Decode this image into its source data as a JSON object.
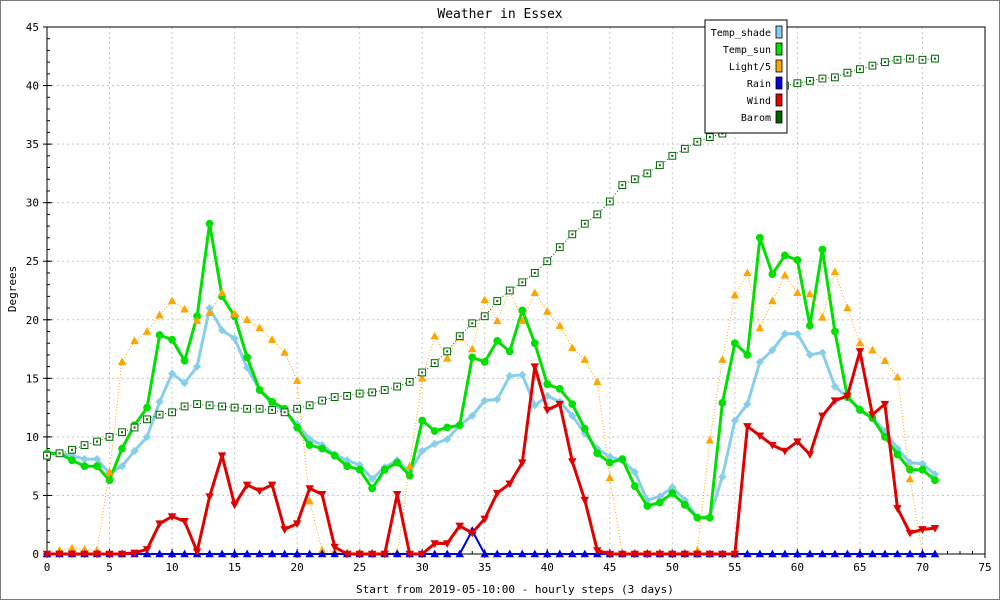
{
  "chart_data": {
    "type": "line",
    "title": "Weather in Essex",
    "xlabel": "Start from 2019-05-10:00 - hourly steps (3 days)",
    "ylabel": "Degrees",
    "xlim": [
      0,
      75
    ],
    "ylim": [
      0,
      45
    ],
    "xticks": [
      0,
      5,
      10,
      15,
      20,
      25,
      30,
      35,
      40,
      45,
      50,
      55,
      60,
      65,
      70,
      75
    ],
    "yticks": [
      0,
      5,
      10,
      15,
      20,
      25,
      30,
      35,
      40,
      45
    ],
    "grid": true,
    "legend_position": "top-right",
    "x": [
      0,
      1,
      2,
      3,
      4,
      5,
      6,
      7,
      8,
      9,
      10,
      11,
      12,
      13,
      14,
      15,
      16,
      17,
      18,
      19,
      20,
      21,
      22,
      23,
      24,
      25,
      26,
      27,
      28,
      29,
      30,
      31,
      32,
      33,
      34,
      35,
      36,
      37,
      38,
      39,
      40,
      41,
      42,
      43,
      44,
      45,
      46,
      47,
      48,
      49,
      50,
      51,
      52,
      53,
      54,
      55,
      56,
      57,
      58,
      59,
      60,
      61,
      62,
      63,
      64,
      65,
      66,
      67,
      68,
      69,
      70,
      71
    ],
    "series": [
      {
        "name": "Temp_shade",
        "color": "#87ceeb",
        "marker": "diamond",
        "values": [
          8.6,
          8.6,
          8.4,
          8.1,
          8.1,
          6.9,
          7.5,
          8.8,
          10.0,
          13.0,
          15.4,
          14.6,
          16.0,
          21.0,
          19.1,
          18.4,
          15.9,
          14.0,
          12.8,
          12.2,
          11.1,
          9.8,
          9.3,
          8.5,
          8.0,
          7.6,
          6.4,
          7.4,
          8.0,
          7.0,
          8.8,
          9.4,
          9.8,
          11.0,
          11.8,
          13.1,
          13.2,
          15.2,
          15.3,
          12.7,
          13.5,
          13.0,
          11.8,
          10.3,
          9.0,
          8.3,
          8.0,
          7.0,
          4.6,
          4.9,
          5.7,
          4.6,
          3.1,
          3.2,
          6.6,
          11.4,
          12.8,
          16.4,
          17.4,
          18.8,
          18.8,
          17.0,
          17.2,
          14.3,
          13.4,
          12.4,
          11.6,
          10.5,
          9.0,
          7.8,
          7.7,
          6.8
        ]
      },
      {
        "name": "Temp_sun",
        "color": "#00e000",
        "marker": "circle",
        "values": [
          8.6,
          8.6,
          8.0,
          7.5,
          7.5,
          6.3,
          9.0,
          11.0,
          12.5,
          18.7,
          18.3,
          16.5,
          20.3,
          28.2,
          22.0,
          20.3,
          16.8,
          14.0,
          13.0,
          12.4,
          10.8,
          9.3,
          9.0,
          8.4,
          7.5,
          7.2,
          5.6,
          7.2,
          7.8,
          6.7,
          11.4,
          10.5,
          10.8,
          11.0,
          16.8,
          16.4,
          18.2,
          17.3,
          20.8,
          18.0,
          14.5,
          14.1,
          12.8,
          10.7,
          8.6,
          7.8,
          8.1,
          5.8,
          4.1,
          4.4,
          5.2,
          4.2,
          3.1,
          3.1,
          12.9,
          18.0,
          17.0,
          27.0,
          23.9,
          25.5,
          25.1,
          19.5,
          26.0,
          19.0,
          13.4,
          12.3,
          11.6,
          10.0,
          8.5,
          7.2,
          7.2,
          6.3
        ]
      },
      {
        "name": "Light/5",
        "color": "#ffa500",
        "marker": "triangle-up",
        "values": [
          0.0,
          0.3,
          0.5,
          0.4,
          0.3,
          7.0,
          16.4,
          18.2,
          19.0,
          20.4,
          21.6,
          20.9,
          19.9,
          20.6,
          22.3,
          20.5,
          20.0,
          19.3,
          18.3,
          17.2,
          14.8,
          4.5,
          0.3,
          0.2,
          0.1,
          0.1,
          0.1,
          0.1,
          0.1,
          7.5,
          15.0,
          18.6,
          16.7,
          18.5,
          17.5,
          21.7,
          19.9,
          22.5,
          19.9,
          22.3,
          20.7,
          19.5,
          17.6,
          16.6,
          14.7,
          6.5,
          0.1,
          0.1,
          0.1,
          0.1,
          0.1,
          0.1,
          0.3,
          9.7,
          16.6,
          22.1,
          24.0,
          19.3,
          21.6,
          23.8,
          22.3,
          22.2,
          20.2,
          24.1,
          21.0,
          18.0,
          17.4,
          16.5,
          15.1,
          6.4,
          0.0,
          0.0
        ]
      },
      {
        "name": "Rain",
        "color": "#0000e0",
        "marker": "triangle-up",
        "values": [
          0,
          0,
          0,
          0,
          0,
          0,
          0,
          0,
          0,
          0,
          0,
          0,
          0,
          0,
          0,
          0,
          0,
          0,
          0,
          0,
          0,
          0,
          0,
          0,
          0,
          0,
          0,
          0,
          0,
          0,
          0,
          0,
          0,
          0,
          2.0,
          0,
          0,
          0,
          0,
          0,
          0,
          0,
          0,
          0,
          0,
          0,
          0,
          0,
          0,
          0,
          0,
          0,
          0,
          0,
          0,
          0,
          0,
          0,
          0,
          0,
          0,
          0,
          0,
          0,
          0,
          0,
          0,
          0,
          0,
          0,
          0,
          0
        ]
      },
      {
        "name": "Wind",
        "color": "#e00000",
        "marker": "triangle-down",
        "values": [
          0.0,
          0.0,
          0.0,
          0.0,
          0.0,
          0.0,
          0.0,
          0.1,
          0.4,
          2.6,
          3.2,
          2.8,
          0.2,
          4.9,
          8.4,
          4.2,
          5.9,
          5.4,
          5.9,
          2.1,
          2.6,
          5.6,
          5.1,
          0.6,
          0.0,
          0.0,
          0.0,
          0.0,
          5.1,
          0.0,
          0.0,
          0.9,
          0.9,
          2.4,
          1.8,
          3.0,
          5.2,
          6.0,
          7.8,
          16.0,
          12.3,
          12.8,
          7.9,
          4.6,
          0.3,
          0.0,
          0.0,
          0.0,
          0.0,
          0.0,
          0.0,
          0.0,
          0.0,
          0.0,
          0.0,
          0.0,
          10.9,
          10.1,
          9.3,
          8.8,
          9.6,
          8.5,
          11.8,
          13.1,
          13.5,
          17.3,
          11.9,
          12.8,
          3.9,
          1.8,
          2.1,
          2.2
        ]
      },
      {
        "name": "Barom",
        "color": "#006400",
        "marker": "square-open",
        "values": [
          8.4,
          8.6,
          8.9,
          9.3,
          9.6,
          10.0,
          10.4,
          10.8,
          11.5,
          11.9,
          12.1,
          12.6,
          12.8,
          12.7,
          12.6,
          12.5,
          12.4,
          12.4,
          12.3,
          12.1,
          12.4,
          12.7,
          13.1,
          13.4,
          13.5,
          13.7,
          13.8,
          14.0,
          14.3,
          14.7,
          15.5,
          16.3,
          17.3,
          18.6,
          19.7,
          20.3,
          21.6,
          22.5,
          23.2,
          24.0,
          25.0,
          26.2,
          27.3,
          28.2,
          29.0,
          30.1,
          31.5,
          32.0,
          32.5,
          33.2,
          34.0,
          34.6,
          35.2,
          35.6,
          35.9,
          36.8,
          38.8,
          39.4,
          39.7,
          40.0,
          40.2,
          40.4,
          40.6,
          40.7,
          41.1,
          41.4,
          41.7,
          42.0,
          42.2,
          42.3,
          42.2,
          42.3
        ]
      }
    ]
  }
}
